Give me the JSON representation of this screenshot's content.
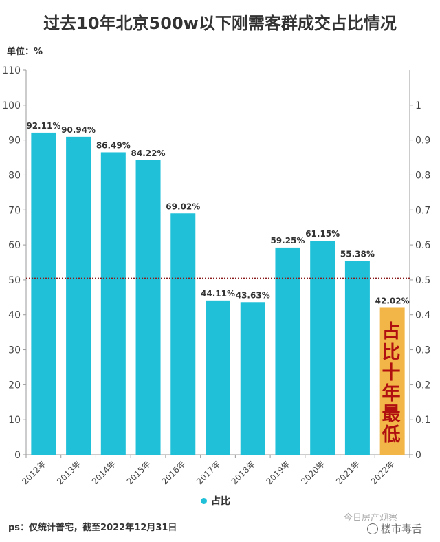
{
  "title": "过去10年北京500w以下刚需客群成交占比情况",
  "unit_label": "单位：%",
  "legend_label": "占比",
  "footnote": "ps：仅统计普宅，截至2022年12月31日",
  "watermark": "今日房产观察",
  "watermark2": "楼市毒舌",
  "highlight_note": "占比十年最低",
  "colors": {
    "bar": "#1FC0D8",
    "highlight": "#F2B548",
    "highlight_text": "#B01010",
    "refline": "#8B1A1A"
  },
  "chart_data": {
    "type": "bar",
    "categories": [
      "2012年",
      "2013年",
      "2014年",
      "2015年",
      "2016年",
      "2017年",
      "2018年",
      "2019年",
      "2020年",
      "2021年",
      "2022年"
    ],
    "series": [
      {
        "name": "占比",
        "values": [
          92.11,
          90.94,
          86.49,
          84.22,
          69.02,
          44.11,
          43.63,
          59.25,
          61.15,
          55.38,
          42.02
        ]
      }
    ],
    "value_labels": [
      "92.11%",
      "90.94%",
      "86.49%",
      "84.22%",
      "69.02%",
      "44.11%",
      "43.63%",
      "59.25%",
      "61.15%",
      "55.38%",
      "42.02%"
    ],
    "highlight_index": 10,
    "ylim": [
      0,
      110
    ],
    "yticks": [
      0,
      10,
      20,
      30,
      40,
      50,
      60,
      70,
      80,
      90,
      100,
      110
    ],
    "y2lim": [
      0,
      1.1
    ],
    "y2ticks": [
      "0",
      "0.1",
      "0.2",
      "0.3",
      "0.4",
      "0.5",
      "0.6",
      "0.7",
      "0.8",
      "0.9",
      "1"
    ],
    "reference_line": 50.5,
    "grid": false,
    "legend_position": "bottom"
  }
}
